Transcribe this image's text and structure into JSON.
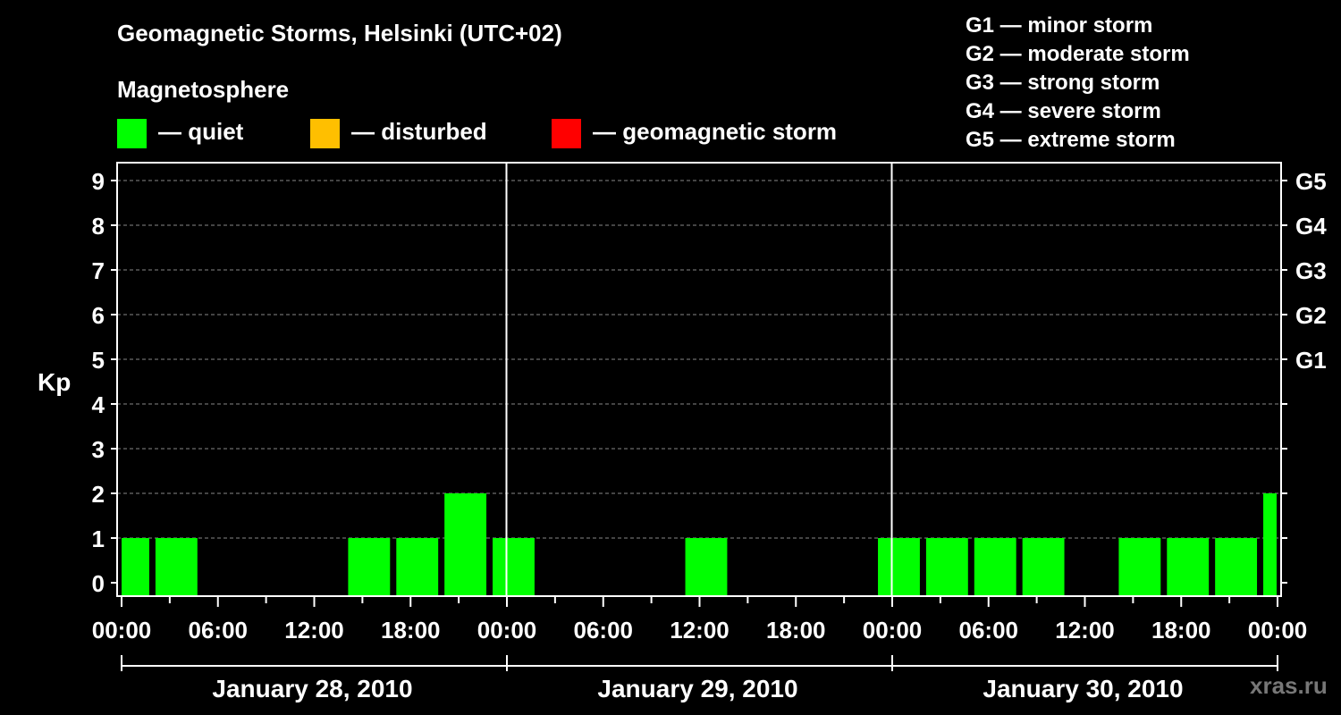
{
  "chart_data": {
    "type": "bar",
    "title": "Geomagnetic Storms, Helsinki (UTC+02)",
    "subtitle": "Magnetosphere",
    "ylabel": "Kp",
    "ylim": [
      0,
      9
    ],
    "yticks": [
      "0",
      "1",
      "2",
      "3",
      "4",
      "5",
      "6",
      "7",
      "8",
      "9"
    ],
    "right_ticks": [
      {
        "kp": 5,
        "label": "G1"
      },
      {
        "kp": 6,
        "label": "G2"
      },
      {
        "kp": 7,
        "label": "G3"
      },
      {
        "kp": 8,
        "label": "G4"
      },
      {
        "kp": 9,
        "label": "G5"
      }
    ],
    "x_tick_labels": [
      "00:00",
      "06:00",
      "12:00",
      "18:00",
      "00:00",
      "06:00",
      "12:00",
      "18:00",
      "00:00",
      "06:00",
      "12:00",
      "18:00",
      "00:00"
    ],
    "x_range_hours": [
      0,
      72
    ],
    "days": [
      "January 28, 2010",
      "January 29, 2010",
      "January 30, 2010"
    ],
    "grid": "horizontal dashed",
    "bars": [
      {
        "start_hour": 0,
        "end_hour": 2,
        "kp": 1,
        "status": "quiet"
      },
      {
        "start_hour": 2,
        "end_hour": 5,
        "kp": 1,
        "status": "quiet"
      },
      {
        "start_hour": 5,
        "end_hour": 8,
        "kp": 0,
        "status": "quiet"
      },
      {
        "start_hour": 8,
        "end_hour": 11,
        "kp": 0,
        "status": "quiet"
      },
      {
        "start_hour": 11,
        "end_hour": 14,
        "kp": 0,
        "status": "quiet"
      },
      {
        "start_hour": 14,
        "end_hour": 17,
        "kp": 1,
        "status": "quiet"
      },
      {
        "start_hour": 17,
        "end_hour": 20,
        "kp": 1,
        "status": "quiet"
      },
      {
        "start_hour": 20,
        "end_hour": 23,
        "kp": 2,
        "status": "quiet"
      },
      {
        "start_hour": 23,
        "end_hour": 26,
        "kp": 1,
        "status": "quiet"
      },
      {
        "start_hour": 26,
        "end_hour": 29,
        "kp": 0,
        "status": "quiet"
      },
      {
        "start_hour": 29,
        "end_hour": 32,
        "kp": 0,
        "status": "quiet"
      },
      {
        "start_hour": 32,
        "end_hour": 35,
        "kp": 0,
        "status": "quiet"
      },
      {
        "start_hour": 35,
        "end_hour": 38,
        "kp": 1,
        "status": "quiet"
      },
      {
        "start_hour": 38,
        "end_hour": 41,
        "kp": 0,
        "status": "quiet"
      },
      {
        "start_hour": 41,
        "end_hour": 44,
        "kp": 0,
        "status": "quiet"
      },
      {
        "start_hour": 44,
        "end_hour": 47,
        "kp": 0,
        "status": "quiet"
      },
      {
        "start_hour": 47,
        "end_hour": 50,
        "kp": 1,
        "status": "quiet"
      },
      {
        "start_hour": 50,
        "end_hour": 53,
        "kp": 1,
        "status": "quiet"
      },
      {
        "start_hour": 53,
        "end_hour": 56,
        "kp": 1,
        "status": "quiet"
      },
      {
        "start_hour": 56,
        "end_hour": 59,
        "kp": 1,
        "status": "quiet"
      },
      {
        "start_hour": 59,
        "end_hour": 62,
        "kp": 0,
        "status": "quiet"
      },
      {
        "start_hour": 62,
        "end_hour": 65,
        "kp": 1,
        "status": "quiet"
      },
      {
        "start_hour": 65,
        "end_hour": 68,
        "kp": 1,
        "status": "quiet"
      },
      {
        "start_hour": 68,
        "end_hour": 71,
        "kp": 1,
        "status": "quiet"
      },
      {
        "start_hour": 71,
        "end_hour": 72,
        "kp": 2,
        "status": "quiet"
      }
    ],
    "legend": [
      {
        "label": "— quiet",
        "color": "#00ff00"
      },
      {
        "label": "— disturbed",
        "color": "#ffbf00"
      },
      {
        "label": "— geomagnetic storm",
        "color": "#ff0000"
      }
    ],
    "storm_scale": [
      "G1 — minor storm",
      "G2 — moderate storm",
      "G3 — strong storm",
      "G4 — severe storm",
      "G5 — extreme storm"
    ]
  },
  "watermark": "xras.ru"
}
